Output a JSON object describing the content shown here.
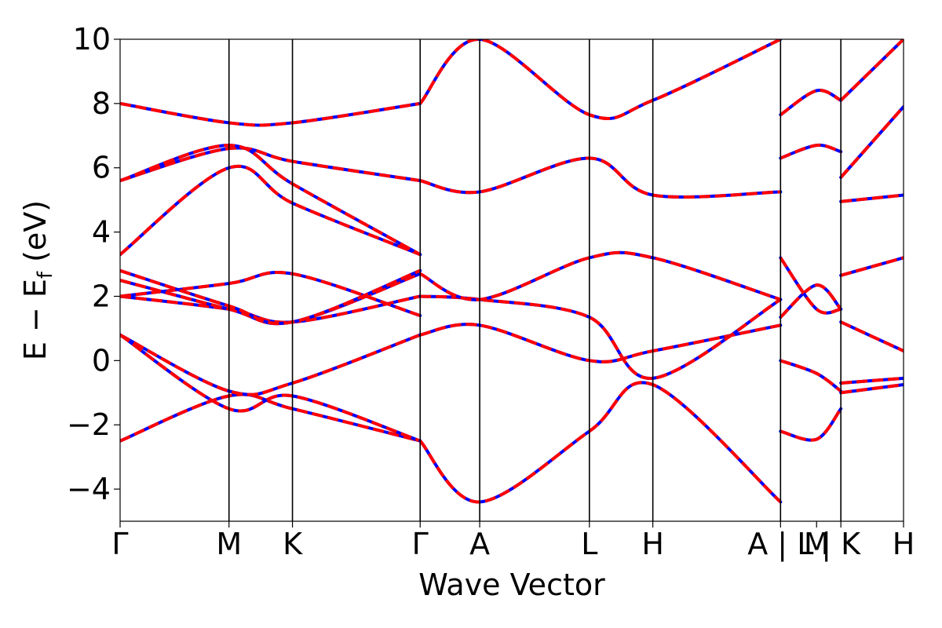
{
  "chart_data": {
    "type": "line",
    "xlabel": "Wave Vector",
    "ylabel": "E − E",
    "ylabel_sub": "f",
    "ylabel_unit": " (eV)",
    "ylim": [
      -5,
      10
    ],
    "yticks": [
      {
        "value": -4,
        "label": "−4"
      },
      {
        "value": -2,
        "label": "−2"
      },
      {
        "value": 0,
        "label": "0"
      },
      {
        "value": 2,
        "label": "2"
      },
      {
        "value": 4,
        "label": "4"
      },
      {
        "value": 6,
        "label": "6"
      },
      {
        "value": 8,
        "label": "8"
      },
      {
        "value": 10,
        "label": "10"
      }
    ],
    "xlim": [
      0,
      1
    ],
    "kpoint_labels": [
      {
        "x": 0.0,
        "label": "Γ"
      },
      {
        "x": 0.139,
        "label": "M"
      },
      {
        "x": 0.22,
        "label": "K"
      },
      {
        "x": 0.383,
        "label": "Γ"
      },
      {
        "x": 0.459,
        "label": "A"
      },
      {
        "x": 0.599,
        "label": "L"
      },
      {
        "x": 0.68,
        "label": "H"
      },
      {
        "x": 0.843,
        "label": "A | L"
      },
      {
        "x": 0.889,
        "label": "M"
      },
      {
        "x": 0.92,
        "label": "| K"
      },
      {
        "x": 1.0,
        "label": "H"
      }
    ],
    "band_lines_x": [
      0.139,
      0.22,
      0.383,
      0.459,
      0.599,
      0.68,
      0.843,
      0.92
    ],
    "grid": false,
    "series_style": {
      "colors": [
        "#ff0000",
        "#0000ff"
      ],
      "dashed_overlay": true
    },
    "segments": [
      {
        "x": [
          0.0,
          0.139,
          0.22,
          0.383
        ],
        "bands": [
          [
            -2.5,
            -1.1,
            -1.5,
            -2.5
          ],
          [
            0.8,
            -0.95,
            -0.7,
            0.8
          ],
          [
            0.8,
            -1.5,
            -1.1,
            -2.5
          ],
          [
            2.0,
            1.6,
            1.2,
            2.0
          ],
          [
            2.0,
            2.4,
            2.7,
            1.4
          ],
          [
            2.5,
            1.6,
            1.2,
            2.7
          ],
          [
            2.8,
            1.7,
            1.2,
            2.8
          ],
          [
            3.3,
            6.0,
            4.9,
            3.3
          ],
          [
            5.6,
            6.6,
            6.2,
            5.6
          ],
          [
            5.6,
            6.7,
            5.5,
            3.3
          ],
          [
            8.0,
            7.4,
            7.4,
            8.0
          ]
        ]
      },
      {
        "x": [
          0.383,
          0.459,
          0.599,
          0.68,
          0.843
        ],
        "bands": [
          [
            -2.5,
            -4.4,
            -2.2,
            -0.75,
            -4.4
          ],
          [
            0.8,
            1.1,
            0.0,
            0.3,
            1.1
          ],
          [
            2.0,
            1.9,
            1.35,
            -0.55,
            1.9
          ],
          [
            2.7,
            1.9,
            3.2,
            3.2,
            1.9
          ],
          [
            5.6,
            5.25,
            6.3,
            5.15,
            5.25
          ],
          [
            8.0,
            10.0,
            7.65,
            8.1,
            10.0
          ]
        ]
      },
      {
        "x": [
          0.843,
          0.889,
          0.92
        ],
        "bands": [
          [
            -2.2,
            -2.45,
            -1.5
          ],
          [
            0.0,
            -0.4,
            -0.95
          ],
          [
            1.35,
            2.35,
            1.6
          ],
          [
            3.2,
            1.6,
            1.6
          ],
          [
            6.3,
            6.7,
            6.5
          ],
          [
            7.65,
            8.4,
            8.1
          ]
        ]
      },
      {
        "x": [
          0.92,
          1.0
        ],
        "bands": [
          [
            -1.0,
            -0.75
          ],
          [
            -0.7,
            -0.55
          ],
          [
            1.2,
            0.3
          ],
          [
            2.65,
            3.2
          ],
          [
            4.95,
            5.15
          ],
          [
            5.7,
            7.9
          ],
          [
            8.1,
            10.0
          ]
        ]
      }
    ]
  }
}
